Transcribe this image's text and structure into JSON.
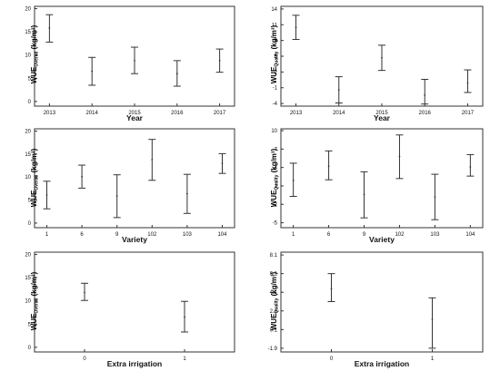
{
  "chart_data": [
    {
      "type": "scatter",
      "ylabel": {
        "main": "WUE",
        "sub": "Overall",
        "unit": " (kg/m³)"
      },
      "xlabel": "Year",
      "categories": [
        "2013",
        "2014",
        "2015",
        "2016",
        "2017"
      ],
      "yticks": [
        0,
        5,
        10,
        15,
        20
      ],
      "ylim": [
        -1,
        20.5
      ],
      "means": [
        15.8,
        6.5,
        8.8,
        6.0,
        8.8
      ],
      "lower": [
        12.8,
        3.5,
        6.0,
        3.3,
        6.3
      ],
      "upper": [
        18.7,
        9.5,
        11.7,
        8.8,
        11.3
      ]
    },
    {
      "type": "scatter",
      "ylabel": {
        "main": "WUE",
        "sub": "Quality",
        "unit": " (kg/m³)"
      },
      "xlabel": "Year",
      "categories": [
        "2013",
        "2014",
        "2015",
        "2016",
        "2017"
      ],
      "yticks": [
        -4,
        -1,
        2,
        5,
        8,
        11,
        14
      ],
      "ylim": [
        -4.5,
        14.5
      ],
      "means": [
        10.5,
        -1.4,
        4.7,
        -2.4,
        -0.1
      ],
      "lower": [
        8.2,
        -3.9,
        2.3,
        -4.1,
        -1.9
      ],
      "upper": [
        12.8,
        1.1,
        7.1,
        0.6,
        2.4
      ]
    },
    {
      "type": "scatter",
      "ylabel": {
        "main": "WUE",
        "sub": "Overall",
        "unit": " (kg/m³)"
      },
      "xlabel": "Variety",
      "categories": [
        "1",
        "6",
        "9",
        "102",
        "103",
        "104"
      ],
      "yticks": [
        0,
        5,
        10,
        15,
        20
      ],
      "ylim": [
        -1,
        20.5
      ],
      "means": [
        6.1,
        10.1,
        5.9,
        13.8,
        6.4,
        13.0
      ],
      "lower": [
        3.1,
        7.6,
        1.2,
        9.3,
        2.1,
        10.8
      ],
      "upper": [
        9.1,
        12.6,
        10.5,
        18.2,
        10.6,
        15.1
      ]
    },
    {
      "type": "scatter",
      "ylabel": {
        "main": "WUE",
        "sub": "Quality",
        "unit": " (kg/m³)"
      },
      "xlabel": "Variety",
      "categories": [
        "1",
        "6",
        "9",
        "102",
        "103",
        "104"
      ],
      "yticks": [
        -5,
        -2,
        1,
        4,
        7,
        10
      ],
      "ylim": [
        -5.8,
        10.3
      ],
      "means": [
        1.9,
        4.2,
        -0.4,
        5.8,
        -0.8,
        4.1
      ],
      "lower": [
        -0.7,
        2.0,
        -4.2,
        2.2,
        -4.5,
        2.6
      ],
      "upper": [
        4.7,
        6.7,
        3.3,
        9.3,
        2.9,
        6.1
      ]
    },
    {
      "type": "scatter",
      "ylabel": {
        "main": "WUE",
        "sub": "Overall",
        "unit": " (kg/m³)"
      },
      "xlabel": "Extra irrigation",
      "categories": [
        "0",
        "1"
      ],
      "yticks": [
        0,
        5,
        10,
        15,
        20
      ],
      "ylim": [
        -1,
        20.5
      ],
      "means": [
        11.8,
        6.5
      ],
      "lower": [
        10.1,
        3.3
      ],
      "upper": [
        13.8,
        9.9
      ]
    },
    {
      "type": "scatter",
      "ylabel": {
        "main": "WUE",
        "sub": "Quality",
        "unit": " (kg/m³)"
      },
      "xlabel": "Extra irrigation",
      "categories": [
        "0",
        "1"
      ],
      "yticks": [
        -1.9,
        0.1,
        2.1,
        4.1,
        6.1,
        8.1
      ],
      "ylim": [
        -2.3,
        8.4
      ],
      "means": [
        4.5,
        1.2
      ],
      "lower": [
        3.1,
        -1.9
      ],
      "upper": [
        6.1,
        3.5
      ]
    }
  ]
}
